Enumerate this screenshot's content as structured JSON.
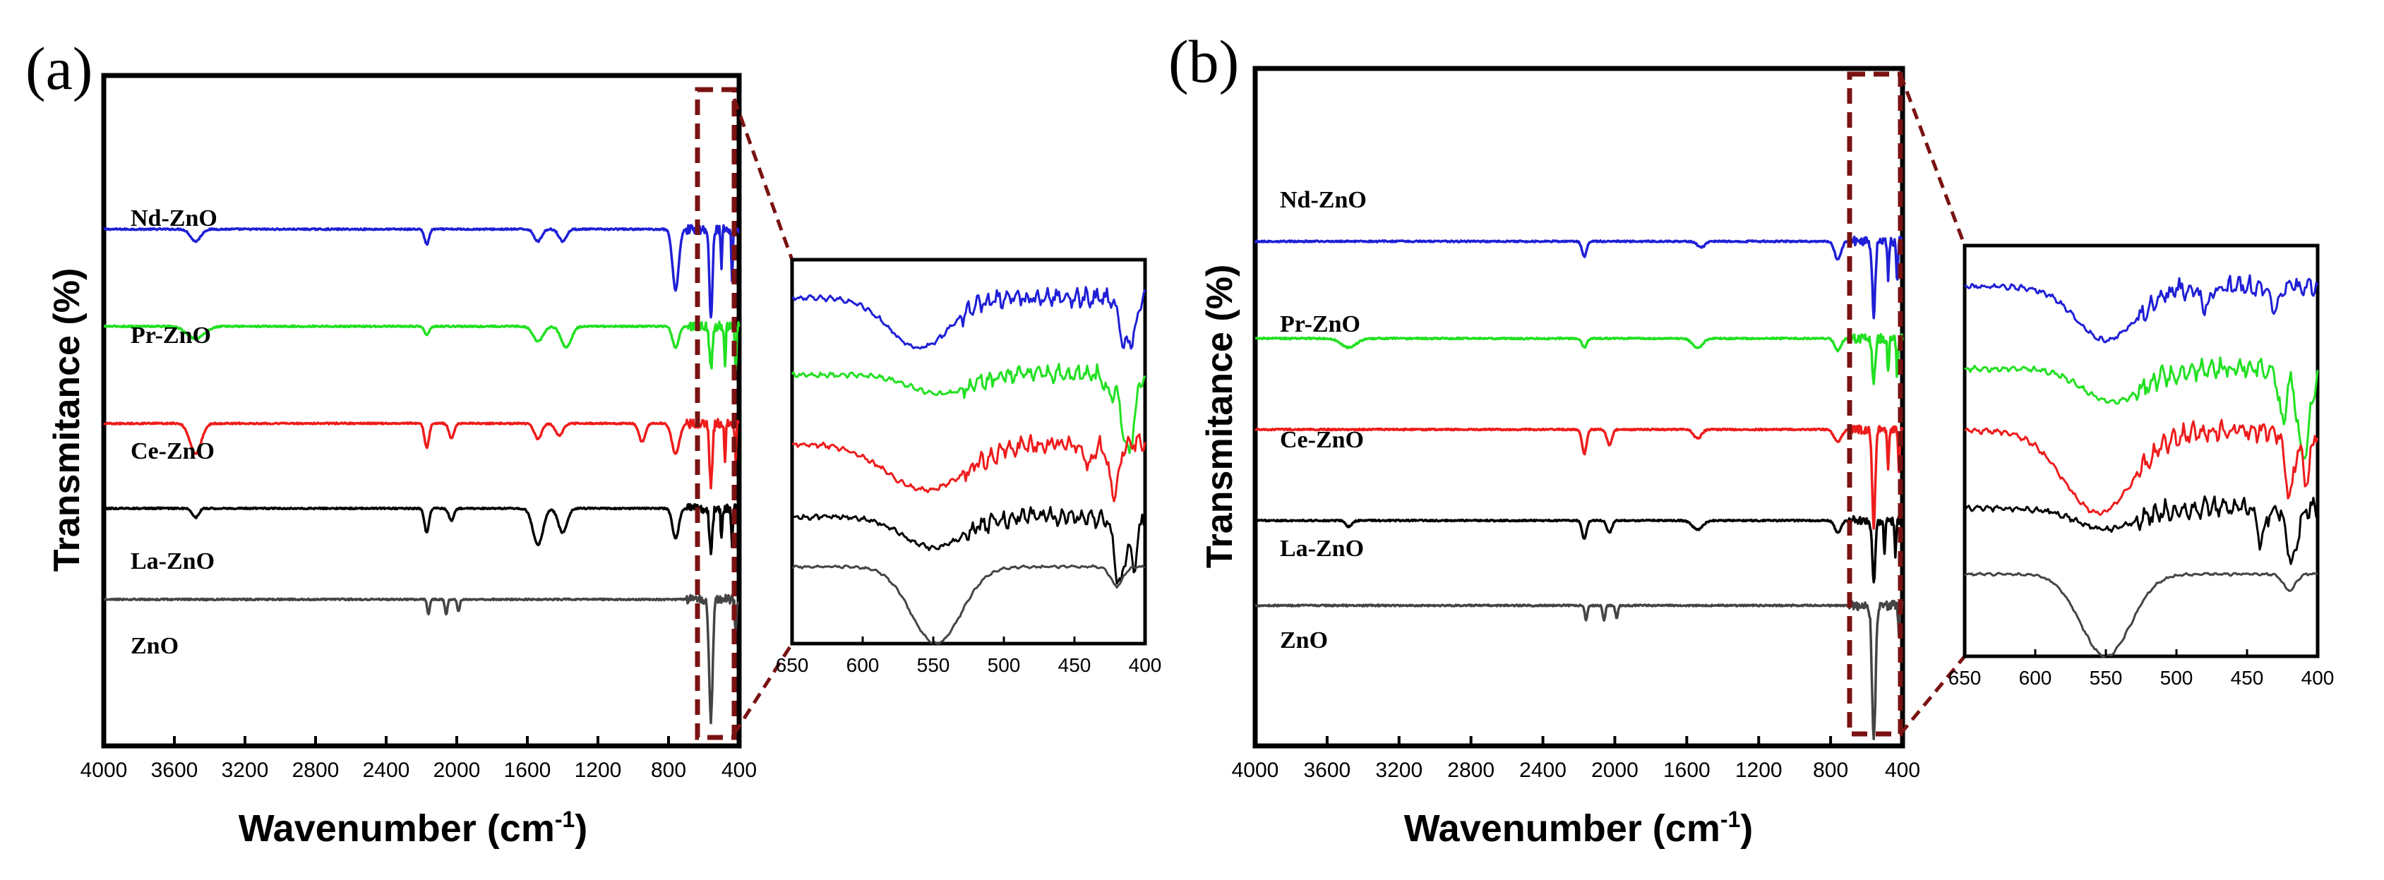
{
  "panels": [
    {
      "panel_label": "(a)",
      "chart_data": {
        "type": "line",
        "title": "",
        "xlabel": "Wavenumber (cm",
        "xlabel_sup": "-1",
        "xlabel_close": ")",
        "ylabel": "Transmitance (%)",
        "xlim": [
          4000,
          400
        ],
        "x_ticks": [
          4000,
          3600,
          3200,
          2800,
          2400,
          2000,
          1600,
          1200,
          800,
          400
        ],
        "y_ticks": [],
        "legend": "inline labels",
        "series": [
          {
            "name": "Nd-ZnO",
            "color": "#1f1fd6",
            "baseline": 0.82,
            "dips": [
              [
                3480,
                40,
                0.02
              ],
              [
                2170,
                18,
                0.025
              ],
              [
                1540,
                30,
                0.02
              ],
              [
                1400,
                30,
                0.02
              ],
              [
                760,
                25,
                0.1
              ],
              [
                560,
                12,
                0.15
              ],
              [
                500,
                6,
                0.06
              ],
              [
                440,
                6,
                0.08
              ]
            ]
          },
          {
            "name": "Pr-ZnO",
            "color": "#22e022",
            "baseline": 0.66,
            "dips": [
              [
                3480,
                70,
                0.02
              ],
              [
                2170,
                18,
                0.015
              ],
              [
                1540,
                40,
                0.025
              ],
              [
                1380,
                40,
                0.035
              ],
              [
                760,
                25,
                0.035
              ],
              [
                560,
                12,
                0.07
              ],
              [
                480,
                6,
                0.06
              ],
              [
                420,
                6,
                0.08
              ]
            ]
          },
          {
            "name": "Ce-ZnO",
            "color": "#ee1c1c",
            "baseline": 0.5,
            "dips": [
              [
                3480,
                45,
                0.05
              ],
              [
                2170,
                18,
                0.04
              ],
              [
                2030,
                20,
                0.025
              ],
              [
                1540,
                30,
                0.025
              ],
              [
                1420,
                30,
                0.02
              ],
              [
                950,
                25,
                0.03
              ],
              [
                760,
                30,
                0.05
              ],
              [
                560,
                12,
                0.1
              ],
              [
                480,
                6,
                0.07
              ],
              [
                420,
                6,
                0.06
              ]
            ]
          },
          {
            "name": "La-ZnO",
            "color": "#000000",
            "baseline": 0.36,
            "dips": [
              [
                3480,
                25,
                0.015
              ],
              [
                2170,
                18,
                0.04
              ],
              [
                2030,
                20,
                0.02
              ],
              [
                1540,
                40,
                0.06
              ],
              [
                1400,
                35,
                0.04
              ],
              [
                760,
                25,
                0.05
              ],
              [
                560,
                12,
                0.07
              ],
              [
                500,
                6,
                0.05
              ],
              [
                440,
                6,
                0.06
              ]
            ]
          },
          {
            "name": "ZnO",
            "color": "#444444",
            "baseline": 0.21,
            "dips": [
              [
                2160,
                10,
                0.025
              ],
              [
                2060,
                10,
                0.025
              ],
              [
                1990,
                10,
                0.02
              ],
              [
                560,
                14,
                0.2
              ],
              [
                420,
                6,
                0.05
              ]
            ]
          }
        ]
      },
      "inset": {
        "chart_data": {
          "type": "line",
          "xlim": [
            650,
            400
          ],
          "x_ticks": [
            650,
            600,
            550,
            500,
            450,
            400
          ],
          "series": [
            {
              "name": "Nd-ZnO",
              "color": "#1f1fd6",
              "baseline": 0.9,
              "broad": [
                [
                  560,
                  30,
                  0.13
                ]
              ],
              "narrow": [
                [
                  415,
                  5,
                  0.12
                ],
                [
                  408,
                  4,
                  0.08
                ]
              ]
            },
            {
              "name": "Pr-ZnO",
              "color": "#22e022",
              "baseline": 0.7,
              "broad": [
                [
                  545,
                  30,
                  0.05
                ]
              ],
              "narrow": [
                [
                  412,
                  6,
                  0.2
                ],
                [
                  425,
                  4,
                  0.06
                ]
              ]
            },
            {
              "name": "Ce-ZnO",
              "color": "#ee1c1c",
              "baseline": 0.52,
              "broad": [
                [
                  555,
                  40,
                  0.12
                ]
              ],
              "narrow": [
                [
                  422,
                  5,
                  0.12
                ],
                [
                  440,
                  4,
                  0.06
                ]
              ]
            },
            {
              "name": "La-ZnO",
              "color": "#000000",
              "baseline": 0.33,
              "broad": [
                [
                  550,
                  30,
                  0.08
                ]
              ],
              "narrow": [
                [
                  418,
                  5,
                  0.18
                ],
                [
                  408,
                  4,
                  0.12
                ]
              ]
            },
            {
              "name": "ZnO",
              "color": "#444444",
              "baseline": 0.2,
              "broad": [
                [
                  548,
                  25,
                  0.2
                ]
              ],
              "narrow": [
                [
                  420,
                  6,
                  0.05
                ]
              ]
            }
          ]
        }
      }
    },
    {
      "panel_label": "(b)",
      "chart_data": {
        "type": "line",
        "title": "",
        "xlabel": "Wavenumber (cm",
        "xlabel_sup": "-1",
        "xlabel_close": ")",
        "ylabel": "Transmitance (%)",
        "xlim": [
          4000,
          400
        ],
        "x_ticks": [
          4000,
          3600,
          3200,
          2800,
          2400,
          2000,
          1600,
          1200,
          800,
          400
        ],
        "y_ticks": [],
        "legend": "inline labels",
        "series": [
          {
            "name": "Nd-ZnO",
            "color": "#1f1fd6",
            "baseline": 0.8,
            "dips": [
              [
                2170,
                18,
                0.025
              ],
              [
                1520,
                30,
                0.01
              ],
              [
                760,
                25,
                0.03
              ],
              [
                560,
                12,
                0.12
              ],
              [
                480,
                6,
                0.06
              ],
              [
                430,
                6,
                0.07
              ]
            ]
          },
          {
            "name": "Pr-ZnO",
            "color": "#22e022",
            "baseline": 0.64,
            "dips": [
              [
                3480,
                60,
                0.015
              ],
              [
                2170,
                18,
                0.015
              ],
              [
                1540,
                40,
                0.015
              ],
              [
                760,
                25,
                0.02
              ],
              [
                560,
                12,
                0.07
              ],
              [
                480,
                6,
                0.06
              ],
              [
                430,
                6,
                0.07
              ]
            ]
          },
          {
            "name": "Ce-ZnO",
            "color": "#ee1c1c",
            "baseline": 0.49,
            "dips": [
              [
                2170,
                18,
                0.04
              ],
              [
                2030,
                20,
                0.025
              ],
              [
                1540,
                30,
                0.015
              ],
              [
                760,
                30,
                0.02
              ],
              [
                560,
                12,
                0.16
              ],
              [
                480,
                6,
                0.07
              ],
              [
                420,
                6,
                0.07
              ]
            ]
          },
          {
            "name": "La-ZnO",
            "color": "#000000",
            "baseline": 0.34,
            "dips": [
              [
                3480,
                25,
                0.01
              ],
              [
                2170,
                18,
                0.03
              ],
              [
                2030,
                20,
                0.02
              ],
              [
                1540,
                40,
                0.015
              ],
              [
                760,
                25,
                0.02
              ],
              [
                560,
                12,
                0.1
              ],
              [
                500,
                6,
                0.05
              ],
              [
                440,
                6,
                0.06
              ]
            ]
          },
          {
            "name": "ZnO",
            "color": "#444444",
            "baseline": 0.2,
            "dips": [
              [
                2160,
                10,
                0.025
              ],
              [
                2060,
                10,
                0.025
              ],
              [
                1990,
                10,
                0.02
              ],
              [
                560,
                14,
                0.22
              ],
              [
                420,
                6,
                0.05
              ]
            ]
          }
        ]
      },
      "inset": {
        "chart_data": {
          "type": "line",
          "xlim": [
            650,
            400
          ],
          "x_ticks": [
            650,
            600,
            550,
            500,
            450,
            400
          ],
          "series": [
            {
              "name": "Nd-ZnO",
              "color": "#1f1fd6",
              "baseline": 0.9,
              "broad": [
                [
                  550,
                  30,
                  0.13
                ]
              ],
              "narrow": [
                [
                  480,
                  5,
                  0.05
                ],
                [
                  430,
                  4,
                  0.05
                ]
              ]
            },
            {
              "name": "Pr-ZnO",
              "color": "#22e022",
              "baseline": 0.7,
              "broad": [
                [
                  545,
                  30,
                  0.08
                ]
              ],
              "narrow": [
                [
                  410,
                  6,
                  0.22
                ],
                [
                  425,
                  4,
                  0.12
                ]
              ]
            },
            {
              "name": "Ce-ZnO",
              "color": "#ee1c1c",
              "baseline": 0.55,
              "broad": [
                [
                  555,
                  35,
                  0.2
                ]
              ],
              "narrow": [
                [
                  420,
                  5,
                  0.15
                ],
                [
                  408,
                  4,
                  0.12
                ]
              ]
            },
            {
              "name": "La-ZnO",
              "color": "#000000",
              "baseline": 0.36,
              "broad": [
                [
                  550,
                  30,
                  0.05
                ]
              ],
              "narrow": [
                [
                  418,
                  5,
                  0.14
                ],
                [
                  440,
                  4,
                  0.08
                ]
              ]
            },
            {
              "name": "ZnO",
              "color": "#444444",
              "baseline": 0.2,
              "broad": [
                [
                  550,
                  25,
                  0.2
                ]
              ],
              "narrow": [
                [
                  420,
                  6,
                  0.04
                ]
              ]
            }
          ]
        }
      }
    }
  ]
}
